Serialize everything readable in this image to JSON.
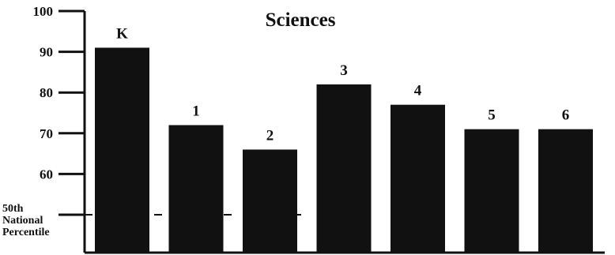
{
  "chart_data": {
    "type": "bar",
    "title": "Sciences",
    "xlabel": "",
    "ylabel": "",
    "categories": [
      "K",
      "1",
      "2",
      "3",
      "4",
      "5",
      "6"
    ],
    "values": [
      91,
      72,
      66,
      82,
      77,
      71,
      71
    ],
    "ylim": [
      50,
      100
    ],
    "yticks": [
      {
        "value": 100,
        "label": "100"
      },
      {
        "value": 90,
        "label": "90"
      },
      {
        "value": 80,
        "label": "80"
      },
      {
        "value": 70,
        "label": "70"
      },
      {
        "value": 60,
        "label": "60"
      }
    ],
    "reference_line": {
      "value": 50,
      "label_lines": [
        "50th",
        "National",
        "Percentile"
      ],
      "style": "dashed"
    },
    "bar_color": "#111111",
    "grid": false
  }
}
